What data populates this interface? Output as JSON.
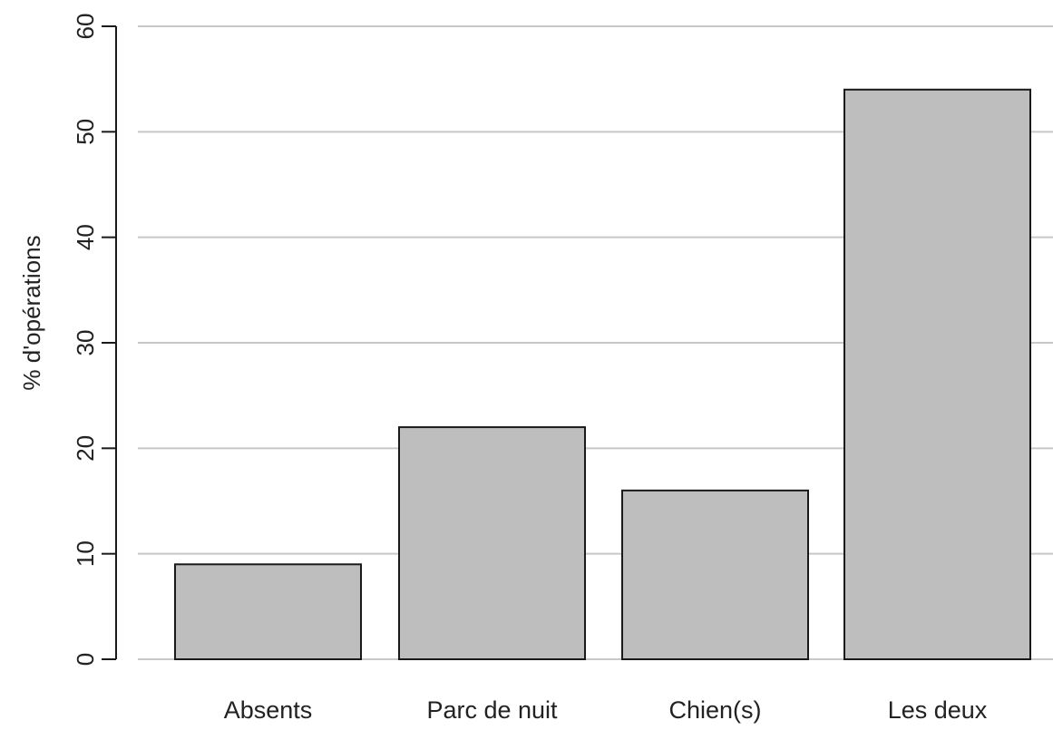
{
  "chart_data": {
    "type": "bar",
    "categories": [
      "Absents",
      "Parc de nuit",
      "Chien(s)",
      "Les deux"
    ],
    "values": [
      9,
      22,
      16,
      54
    ],
    "ylabel": "% d'opérations",
    "xlabel": "",
    "ylim": [
      0,
      60
    ],
    "yticks": [
      0,
      10,
      20,
      30,
      40,
      50,
      60
    ],
    "grid": "horizontal",
    "bar_color": "#bebebe",
    "bar_edge_color": "#1a1a1a",
    "grid_color": "#c8c8c8"
  }
}
